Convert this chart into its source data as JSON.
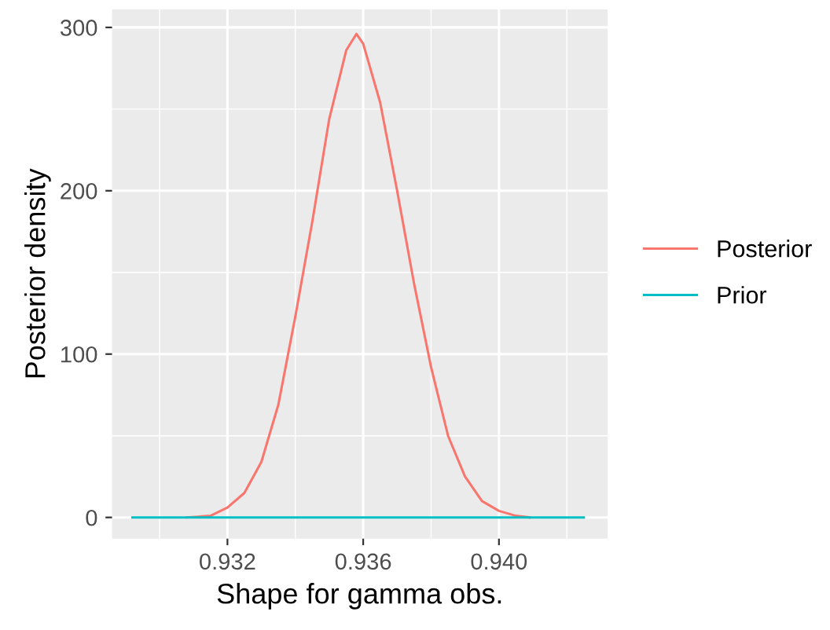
{
  "chart_data": {
    "type": "line",
    "xlabel": "Shape for gamma obs.",
    "ylabel": "Posterior density",
    "series": [
      {
        "name": "Posterior",
        "color": "#f8766d",
        "x": [
          0.9308,
          0.9315,
          0.932,
          0.9325,
          0.933,
          0.9335,
          0.934,
          0.9345,
          0.935,
          0.9355,
          0.9358,
          0.936,
          0.9365,
          0.937,
          0.9375,
          0.938,
          0.9385,
          0.939,
          0.9395,
          0.94,
          0.9405,
          0.9409
        ],
        "values": [
          0,
          1,
          6,
          15,
          34,
          69,
          123,
          181,
          244,
          286,
          296,
          290,
          254,
          200,
          143,
          92,
          50,
          25,
          10,
          4,
          1,
          0
        ]
      },
      {
        "name": "Prior",
        "color": "#00bfc4",
        "x": [
          0.9292,
          0.9425
        ],
        "values": [
          0,
          0
        ]
      }
    ],
    "xlim": [
      0.9286,
      0.9432
    ],
    "ylim": [
      -13,
      311
    ],
    "xticks": [
      0.932,
      0.936,
      {
        "value": 0.94,
        "label": "0.940"
      }
    ],
    "yticks": [
      0,
      100,
      200,
      300
    ],
    "grid": true,
    "legend": "right"
  }
}
